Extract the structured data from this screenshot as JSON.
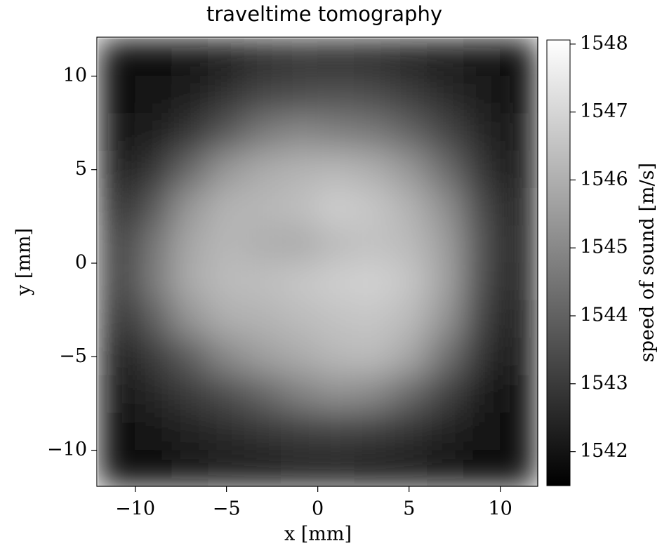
{
  "chart_data": {
    "type": "heatmap",
    "title": "traveltime tomography",
    "x_label": "x [mm]",
    "y_label": "y [mm]",
    "colorbar_label": "speed of sound [m/s]",
    "colormap": "gray",
    "xlim": [
      -12.1,
      12.05
    ],
    "ylim": [
      -11.93,
      12.08
    ],
    "xticks": [
      {
        "value": -10,
        "label": "−10"
      },
      {
        "value": -5,
        "label": "−5"
      },
      0,
      5,
      10
    ],
    "yticks": [
      {
        "value": -10,
        "label": "−10"
      },
      {
        "value": -5,
        "label": "−5"
      },
      0,
      5,
      10
    ],
    "clim": [
      1541.5,
      1548.06
    ],
    "cticks": [
      1542,
      1543,
      1544,
      1545,
      1546,
      1547,
      1548
    ],
    "x": [
      -11,
      -9,
      -7,
      -5,
      -3,
      -1,
      1,
      3,
      5,
      7,
      9,
      11
    ],
    "y": [
      11,
      9,
      7,
      5,
      3,
      1,
      -1,
      -3,
      -5,
      -7,
      -9,
      -11
    ],
    "z": [
      [
        1541.8,
        1541.9,
        1542.0,
        1542.2,
        1542.6,
        1542.8,
        1542.7,
        1542.6,
        1542.4,
        1542.2,
        1542.0,
        1541.8
      ],
      [
        1541.9,
        1542.0,
        1542.3,
        1542.8,
        1543.3,
        1543.5,
        1543.6,
        1543.5,
        1543.1,
        1542.6,
        1542.2,
        1541.9
      ],
      [
        1542.0,
        1542.3,
        1542.9,
        1543.8,
        1544.6,
        1545.0,
        1544.8,
        1544.6,
        1544.1,
        1543.3,
        1542.5,
        1542.0
      ],
      [
        1542.2,
        1542.9,
        1544.2,
        1545.4,
        1545.9,
        1546.1,
        1546.2,
        1546.0,
        1545.4,
        1544.3,
        1542.9,
        1542.1
      ],
      [
        1542.6,
        1543.8,
        1545.4,
        1546.1,
        1546.2,
        1546.4,
        1546.8,
        1546.6,
        1546.1,
        1545.2,
        1543.4,
        1542.2
      ],
      [
        1543.0,
        1544.5,
        1545.8,
        1546.2,
        1546.0,
        1545.9,
        1546.3,
        1546.5,
        1546.3,
        1545.6,
        1543.6,
        1542.2
      ],
      [
        1543.0,
        1544.6,
        1545.9,
        1546.3,
        1546.4,
        1546.6,
        1546.8,
        1546.9,
        1546.6,
        1545.7,
        1543.5,
        1542.2
      ],
      [
        1542.7,
        1543.9,
        1545.3,
        1546.0,
        1546.1,
        1546.3,
        1546.5,
        1546.6,
        1546.3,
        1545.3,
        1543.2,
        1542.1
      ],
      [
        1542.3,
        1543.0,
        1543.9,
        1545.0,
        1545.6,
        1545.9,
        1546.2,
        1546.3,
        1545.8,
        1544.4,
        1542.8,
        1542.0
      ],
      [
        1542.1,
        1542.5,
        1543.0,
        1543.5,
        1544.1,
        1544.8,
        1545.2,
        1545.0,
        1544.2,
        1543.2,
        1542.3,
        1541.9
      ],
      [
        1541.9,
        1542.1,
        1542.4,
        1542.6,
        1542.9,
        1543.1,
        1543.2,
        1543.1,
        1542.8,
        1542.4,
        1542.0,
        1541.8
      ],
      [
        1541.8,
        1541.9,
        1542.0,
        1542.2,
        1542.3,
        1542.4,
        1542.4,
        1542.3,
        1542.2,
        1542.0,
        1541.9,
        1541.7
      ]
    ]
  }
}
